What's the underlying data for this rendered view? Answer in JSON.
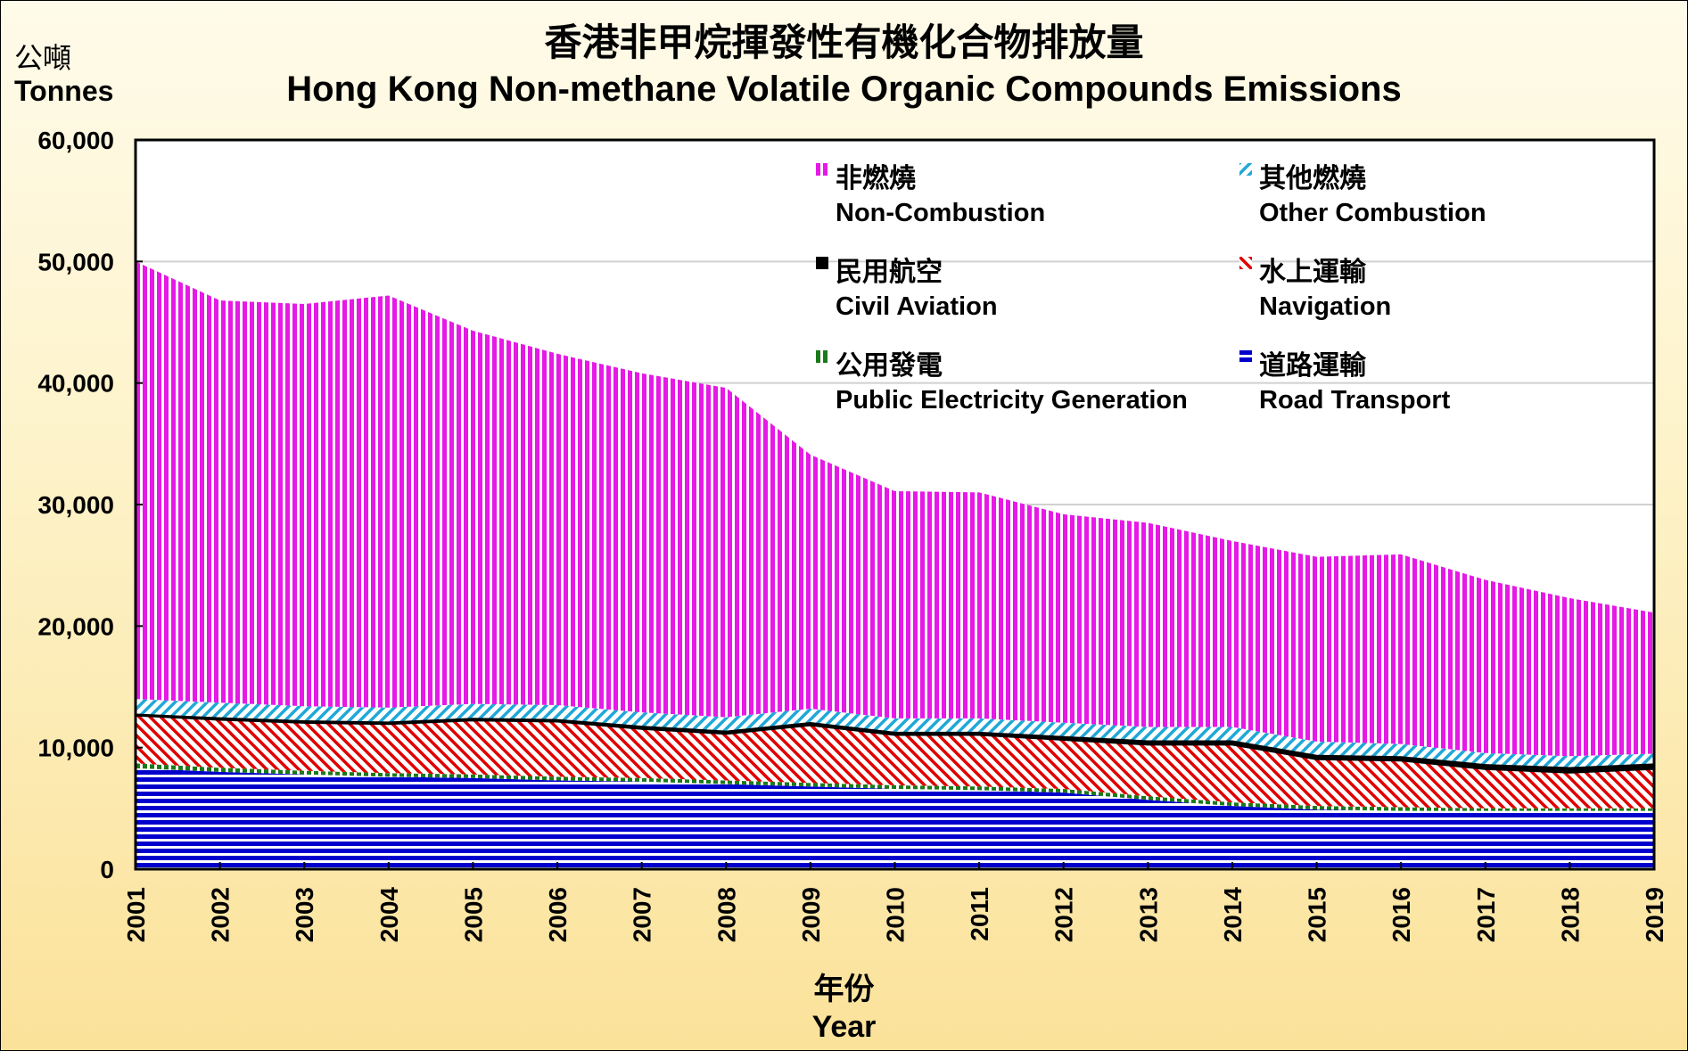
{
  "chart_data": {
    "type": "area",
    "stacked": true,
    "title": "香港非甲烷揮發性有機化合物排放量",
    "subtitle": "Hong Kong Non-methane Volatile Organic Compounds Emissions",
    "ylabel_zh": "公噸",
    "ylabel": "Tonnes",
    "xlabel_zh": "年份",
    "xlabel": "Year",
    "ylim": [
      0,
      60000
    ],
    "yticks": [
      0,
      10000,
      20000,
      30000,
      40000,
      50000,
      60000
    ],
    "ytick_labels": [
      "0",
      "10,000",
      "20,000",
      "30,000",
      "40,000",
      "50,000",
      "60,000"
    ],
    "grid": "horizontal",
    "legend_position": "top-right",
    "x": [
      "2001",
      "2002",
      "2003",
      "2004",
      "2005",
      "2006",
      "2007",
      "2008",
      "2009",
      "2010",
      "2011",
      "2012",
      "2013",
      "2014",
      "2015",
      "2016",
      "2017",
      "2018",
      "2019"
    ],
    "series": [
      {
        "name": "Road Transport",
        "name_zh": "道路運輸",
        "color": "#0000cc",
        "pattern": "horizontal",
        "values": [
          8300,
          8000,
          7800,
          7600,
          7500,
          7300,
          7200,
          7000,
          6800,
          6600,
          6500,
          6300,
          5700,
          5200,
          4900,
          4800,
          4800,
          4800,
          4800
        ]
      },
      {
        "name": "Public Electricity Generation",
        "name_zh": "公用發電",
        "color": "#1a7a1a",
        "pattern": "checker",
        "values": [
          400,
          350,
          300,
          300,
          300,
          300,
          300,
          300,
          300,
          300,
          300,
          300,
          300,
          300,
          300,
          300,
          200,
          200,
          200
        ]
      },
      {
        "name": "Navigation",
        "name_zh": "水上運輸",
        "color": "#e00000",
        "pattern": "diagonal-down",
        "values": [
          3900,
          3900,
          3900,
          4000,
          4400,
          4500,
          4000,
          3800,
          4700,
          4100,
          4200,
          4000,
          4200,
          4700,
          3800,
          3800,
          3200,
          2900,
          3200
        ]
      },
      {
        "name": "Civil Aviation",
        "name_zh": "民用航空",
        "color": "#000000",
        "pattern": "solid",
        "values": [
          200,
          250,
          250,
          250,
          250,
          250,
          300,
          300,
          300,
          300,
          300,
          350,
          400,
          400,
          400,
          400,
          450,
          500,
          500
        ]
      },
      {
        "name": "Other Combustion",
        "name_zh": "其他燃燒",
        "color": "#1fa8d8",
        "pattern": "diagonal-up",
        "values": [
          1200,
          1200,
          1150,
          1150,
          1150,
          1150,
          1100,
          1100,
          1100,
          1100,
          1100,
          1100,
          1100,
          1100,
          1100,
          1000,
          900,
          900,
          800
        ]
      },
      {
        "name": "Non-Combustion",
        "name_zh": "非燃燒",
        "color": "#e619e6",
        "pattern": "vertical",
        "values": [
          36000,
          33100,
          33100,
          33900,
          30700,
          28900,
          27900,
          27100,
          20900,
          18700,
          18600,
          17150,
          16800,
          15300,
          15200,
          15600,
          14250,
          13000,
          11600
        ]
      }
    ]
  },
  "legend_order": [
    "Non-Combustion",
    "Other Combustion",
    "Civil Aviation",
    "Navigation",
    "Public Electricity Generation",
    "Road Transport"
  ]
}
